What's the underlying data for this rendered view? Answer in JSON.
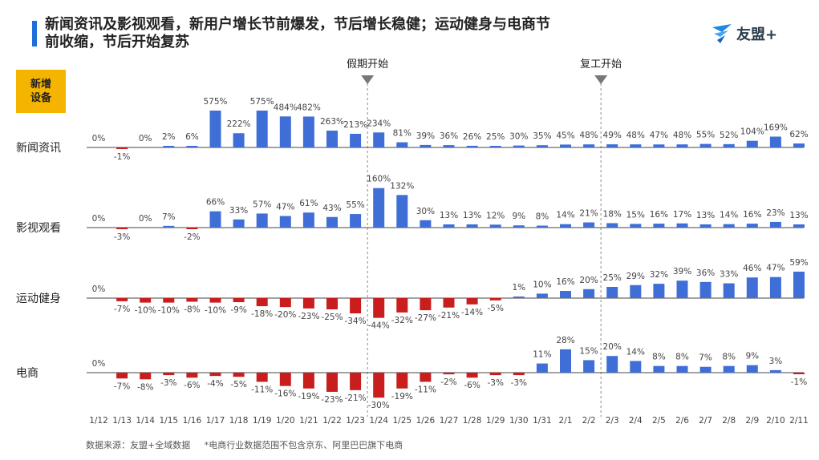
{
  "header": {
    "title": "新闻资讯及影视观看，新用户增长节前爆发，节后增长稳健；运动健身与电商节前收缩，节后开始复苏",
    "logo_text": "友盟+",
    "badge": "新增\n设备"
  },
  "footer": {
    "source": "数据来源：友盟+全域数据",
    "note": "*电商行业数据范围不包含京东、阿里巴巴旗下电商"
  },
  "colors": {
    "positive": "#3f6fd6",
    "negative": "#c81e1e",
    "accent": "#f5b400",
    "title_bar": "#1e6fd9"
  },
  "chart_data": {
    "type": "bar",
    "title": "新增设备",
    "categories": [
      "1/12",
      "1/13",
      "1/14",
      "1/15",
      "1/16",
      "1/17",
      "1/18",
      "1/19",
      "1/20",
      "1/21",
      "1/22",
      "1/23",
      "1/24",
      "1/25",
      "1/26",
      "1/27",
      "1/28",
      "1/29",
      "1/30",
      "1/31",
      "2/1",
      "2/2",
      "2/3",
      "2/4",
      "2/5",
      "2/6",
      "2/7",
      "2/8",
      "2/9",
      "2/10",
      "2/11"
    ],
    "annotations": [
      {
        "label": "假期开始",
        "at_category": "1/24"
      },
      {
        "label": "复工开始",
        "at_category": "2/3"
      }
    ],
    "series": [
      {
        "name": "新闻资讯",
        "unit": "%",
        "values": [
          0,
          -1,
          0,
          2,
          6,
          575,
          222,
          575,
          484,
          482,
          263,
          213,
          234,
          81,
          39,
          36,
          26,
          25,
          30,
          35,
          45,
          48,
          49,
          48,
          47,
          48,
          55,
          52,
          104,
          169,
          62
        ]
      },
      {
        "name": "影视观看",
        "unit": "%",
        "values": [
          0,
          -3,
          0,
          7,
          -2,
          66,
          33,
          57,
          47,
          61,
          43,
          55,
          160,
          132,
          30,
          13,
          13,
          12,
          9,
          8,
          14,
          21,
          18,
          15,
          16,
          17,
          13,
          14,
          16,
          23,
          13
        ]
      },
      {
        "name": "运动健身",
        "unit": "%",
        "values": [
          0,
          -7,
          -10,
          -10,
          -8,
          -10,
          -9,
          -18,
          -20,
          -23,
          -25,
          -34,
          -44,
          -32,
          -27,
          -21,
          -14,
          -5,
          1,
          10,
          16,
          20,
          25,
          29,
          32,
          39,
          36,
          33,
          46,
          47,
          59
        ]
      },
      {
        "name": "电商",
        "unit": "%",
        "values": [
          0,
          -7,
          -8,
          -3,
          -6,
          -4,
          -5,
          -11,
          -16,
          -19,
          -23,
          -21,
          -30,
          -19,
          -11,
          -2,
          -6,
          -3,
          -3,
          11,
          28,
          15,
          20,
          14,
          8,
          8,
          7,
          8,
          9,
          3,
          -1
        ]
      }
    ]
  }
}
